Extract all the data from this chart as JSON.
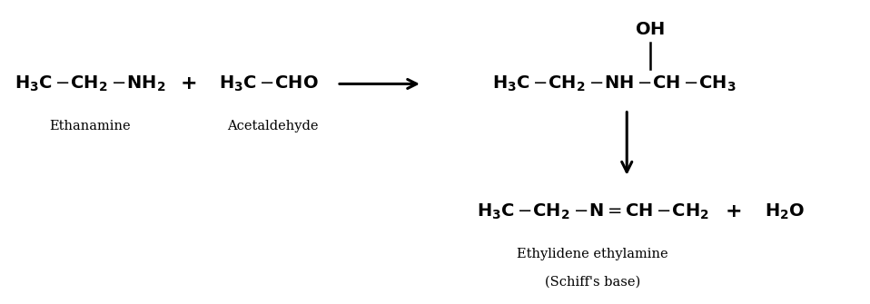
{
  "bg_color": "#ffffff",
  "text_color": "#000000",
  "figsize": [
    9.58,
    3.35
  ],
  "dpi": 100,
  "reactant1_label": "Ethanamine",
  "reactant2_label": "Acetaldehyde",
  "product_label1": "Ethylidene ethylamine",
  "product_label2": "(Schiff's base)",
  "xlim": [
    0,
    10
  ],
  "ylim": [
    0,
    3.5
  ],
  "fs_formula": 14,
  "fs_label": 10.5,
  "fs_plus": 16
}
